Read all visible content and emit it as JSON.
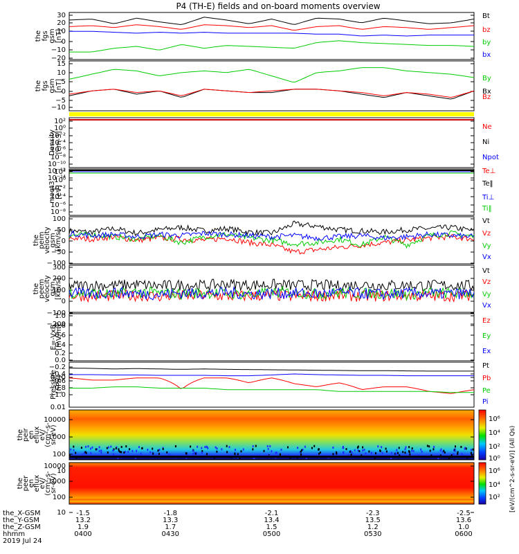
{
  "title": "P4 (TH-E) fields and on-board moments overview",
  "colors": {
    "black": "#000000",
    "red": "#ff0000",
    "green": "#00cc00",
    "blue": "#0000ff"
  },
  "chart_data": [
    {
      "type": "line",
      "ylabel": [
        "the",
        "fgs",
        "gsm",
        "[nT]"
      ],
      "ylim": [
        -20,
        30
      ],
      "ticks": [
        "30",
        "20",
        "10",
        "0",
        "−10",
        "−20"
      ],
      "series": [
        {
          "name": "Bt",
          "color": "black",
          "values": [
            22,
            23,
            18,
            24,
            20,
            17,
            25,
            22,
            18,
            23,
            17,
            24,
            23,
            19,
            24,
            21,
            18,
            19,
            23
          ]
        },
        {
          "name": "bz",
          "color": "red",
          "values": [
            15,
            16,
            14,
            17,
            15,
            12,
            17,
            16,
            14,
            16,
            11,
            15,
            16,
            12,
            15,
            14,
            12,
            14,
            16
          ]
        },
        {
          "name": "by",
          "color": "green",
          "values": [
            -12,
            -12,
            -8,
            -6,
            -10,
            -4,
            -8,
            -5,
            -6,
            -7,
            -8,
            -2,
            0,
            -2,
            -3,
            -4,
            -5,
            -5,
            -6
          ]
        },
        {
          "name": "bx",
          "color": "blue",
          "values": [
            10,
            10,
            9,
            8,
            9,
            8,
            9,
            8,
            8,
            8,
            8,
            7,
            7,
            5,
            6,
            5,
            6,
            6,
            6
          ]
        }
      ]
    },
    {
      "type": "line",
      "ylabel": [
        "the",
        "fgs",
        "gsm",
        "[nT]"
      ],
      "ylim": [
        -15,
        15
      ],
      "ticks": [
        "15",
        "10",
        "5",
        "0",
        "−5",
        "−10"
      ],
      "series": [
        {
          "name": "By",
          "color": "green",
          "values": [
            4,
            7,
            10,
            9,
            6,
            8,
            9,
            8,
            10,
            6,
            2,
            8,
            9,
            11,
            11,
            9,
            8,
            7,
            5
          ]
        },
        {
          "name": "Bx",
          "color": "black",
          "values": [
            -6,
            -3,
            -2,
            -5,
            -3,
            -7,
            -2,
            -3,
            -4,
            -4,
            -2,
            -2,
            -3,
            -5,
            -7,
            -4,
            -6,
            -8,
            -3
          ]
        },
        {
          "name": "Bz",
          "color": "red",
          "values": [
            -5,
            -3,
            -2,
            -4,
            -3,
            -6,
            -2,
            -3,
            -4,
            -3,
            -2,
            -2,
            -3,
            -4,
            -6,
            -4,
            -5,
            -7,
            -3
          ]
        }
      ]
    },
    {
      "type": "line",
      "ylabel": [
        "Density",
        "[cm-3]"
      ],
      "ticks": [
        "10²",
        "10⁰",
        "10⁻²",
        "10⁻⁴",
        "10⁻⁶",
        "10⁻⁸",
        "10⁻¹⁰",
        "10⁻¹²",
        "10⁻¹⁴"
      ],
      "series": [
        {
          "name": "Ne",
          "color": "red"
        },
        {
          "name": "Ni",
          "color": "black"
        },
        {
          "name": "Npot",
          "color": "blue"
        }
      ]
    },
    {
      "type": "line",
      "ylabel": [
        "moqt3",
        "[eV]"
      ],
      "ticks": [
        "10²",
        "10⁰",
        "10⁻²",
        "10⁻⁴",
        "10⁻⁶",
        "10⁻⁸"
      ],
      "series": [
        {
          "name": "Te⊥",
          "color": "red"
        },
        {
          "name": "Te‖",
          "color": "black"
        },
        {
          "name": "Ti⊥",
          "color": "blue"
        },
        {
          "name": "Ti‖",
          "color": "green"
        }
      ]
    },
    {
      "type": "line",
      "ylabel": [
        "the",
        "peim",
        "velocity",
        "gsm",
        "[km/s]"
      ],
      "ylim": [
        -100,
        100
      ],
      "ticks": [
        "100",
        "50",
        "0",
        "−50",
        "−100"
      ],
      "series": [
        {
          "name": "Vt",
          "color": "black",
          "values": [
            40,
            35,
            50,
            30,
            45,
            55,
            40,
            50,
            35,
            30,
            70,
            60,
            45,
            40,
            35,
            45,
            50,
            55,
            40
          ]
        },
        {
          "name": "Vz",
          "color": "red",
          "values": [
            10,
            5,
            15,
            0,
            10,
            5,
            0,
            10,
            -10,
            -20,
            -50,
            -40,
            -30,
            -20,
            -10,
            0,
            10,
            15,
            5
          ]
        },
        {
          "name": "Vy",
          "color": "green",
          "values": [
            20,
            25,
            15,
            5,
            20,
            -10,
            15,
            25,
            10,
            0,
            -15,
            -10,
            5,
            -20,
            15,
            -20,
            20,
            30,
            15
          ]
        },
        {
          "name": "Vx",
          "color": "blue",
          "values": [
            30,
            20,
            25,
            15,
            25,
            20,
            30,
            25,
            20,
            15,
            20,
            10,
            15,
            20,
            10,
            15,
            25,
            20,
            15
          ]
        }
      ]
    },
    {
      "type": "line",
      "ylabel": [
        "the",
        "peem",
        "velocity",
        "gsm",
        "[km/s]"
      ],
      "ylim": [
        -200,
        300
      ],
      "ticks": [
        "300",
        "200",
        "100",
        "0",
        "−100",
        "−200"
      ],
      "series": [
        {
          "name": "Vt",
          "color": "black",
          "values": [
            80,
            90,
            85,
            95,
            80,
            90,
            85,
            100,
            90,
            95,
            85,
            90,
            80,
            95,
            85,
            90,
            85,
            90,
            80
          ]
        },
        {
          "name": "Vz",
          "color": "red",
          "values": [
            -20,
            -30,
            -25,
            -20,
            -30,
            -25,
            -20,
            -30,
            -25,
            -20,
            -30,
            -25,
            -20,
            -30,
            -25,
            -20,
            -30,
            -25,
            -20
          ]
        },
        {
          "name": "Vy",
          "color": "green",
          "values": [
            10,
            0,
            -10,
            15,
            5,
            -5,
            10,
            0,
            -10,
            5,
            15,
            -5,
            10,
            0,
            5,
            -10,
            10,
            0,
            5
          ]
        },
        {
          "name": "Vx",
          "color": "blue",
          "values": [
            5,
            -5,
            10,
            0,
            -10,
            5,
            0,
            10,
            -5,
            0,
            5,
            -5,
            10,
            0,
            -10,
            5,
            0,
            -5,
            5
          ]
        }
      ]
    },
    {
      "type": "line",
      "ylabel": [
        "E=-VxB",
        "[mV/m]"
      ],
      "ylim": [
        -1,
        1
      ],
      "ticks": [
        "1.0",
        "0.8",
        "0.6",
        "0.4",
        "0.2",
        "0.0",
        "−0.2",
        "−0.4",
        "−0.6",
        "−0.8",
        "−1.0"
      ],
      "series": [
        {
          "name": "Ez",
          "color": "red"
        },
        {
          "name": "Ey",
          "color": "green"
        },
        {
          "name": "Ex",
          "color": "blue"
        }
      ]
    },
    {
      "type": "line",
      "ylabel": [
        "Pressure",
        "[nPa]"
      ],
      "scale": "log",
      "ylim": [
        0.01,
        1
      ],
      "ticks": [
        "0.10",
        "0.01"
      ],
      "series": [
        {
          "name": "Pt",
          "color": "black",
          "values": [
            0.55,
            0.53,
            0.5,
            0.52,
            0.5,
            0.48,
            0.5,
            0.48,
            0.47,
            0.46,
            0.45,
            0.44,
            0.43,
            0.42,
            0.42,
            0.41,
            0.4,
            0.4,
            0.4
          ]
        },
        {
          "name": "Pb",
          "color": "red",
          "values": [
            0.2,
            0.16,
            0.16,
            0.2,
            0.2,
            0.06,
            0.2,
            0.2,
            0.12,
            0.2,
            0.11,
            0.08,
            0.12,
            0.06,
            0.08,
            0.08,
            0.05,
            0.04,
            0.06
          ]
        },
        {
          "name": "Pe",
          "color": "green",
          "values": [
            0.07,
            0.07,
            0.08,
            0.08,
            0.07,
            0.07,
            0.07,
            0.06,
            0.06,
            0.06,
            0.06,
            0.06,
            0.05,
            0.05,
            0.05,
            0.05,
            0.05,
            0.045,
            0.045
          ]
        },
        {
          "name": "Pi",
          "color": "blue",
          "values": [
            0.28,
            0.28,
            0.27,
            0.27,
            0.26,
            0.26,
            0.26,
            0.25,
            0.25,
            0.27,
            0.3,
            0.28,
            0.27,
            0.26,
            0.26,
            0.25,
            0.25,
            0.25,
            0.25
          ]
        }
      ]
    },
    {
      "type": "heatmap",
      "ylabel": [
        "the",
        "peir",
        "en",
        "eflux",
        "eV/",
        "(cm²-s-",
        "sr-eV)"
      ],
      "scale": "log",
      "ylim": [
        10,
        10000
      ],
      "ticks": [
        "10000",
        "1000",
        "100",
        "10"
      ]
    },
    {
      "type": "heatmap",
      "ylabel": [
        "the",
        "peer",
        "en",
        "eflux",
        "eV/",
        "(cm²-s-",
        "sr-eV)"
      ],
      "scale": "log",
      "ylim": [
        10,
        10000
      ],
      "ticks": [
        "10000",
        "1000",
        "100",
        "10"
      ]
    }
  ],
  "colorbar": {
    "ticks": [
      "10⁶",
      "10⁴",
      "10²",
      "10⁰",
      "10⁶",
      "10⁴",
      "10²"
    ],
    "label": "[eV/(cm^2-s-sr-eV)] (All Qs)"
  },
  "xaxis": {
    "row_labels": [
      "the_X-GSM",
      "the_Y-GSM",
      "the_Z-GSM",
      "hhmm",
      "2019 Jul 24"
    ],
    "ticks": [
      {
        "x": "-1.5",
        "y": "13.2",
        "z": "1.9",
        "t": "0400"
      },
      {
        "x": "-1.8",
        "y": "13.3",
        "z": "1.7",
        "t": "0430"
      },
      {
        "x": "-2.1",
        "y": "13.4",
        "z": "1.5",
        "t": "0500"
      },
      {
        "x": "-2.3",
        "y": "13.5",
        "z": "1.2",
        "t": "0530"
      },
      {
        "x": "-2.5",
        "y": "13.6",
        "z": "1.0",
        "t": "0600"
      }
    ]
  }
}
